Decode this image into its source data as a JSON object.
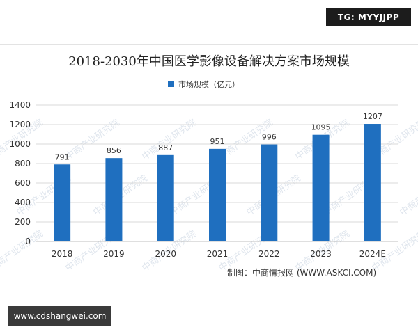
{
  "top_tag": "TG: MYYJJPP",
  "site_badge": "www.cdshangwei.com",
  "watermark_text": "中商产业研究院",
  "source_note": "制图：中商情报网 (WWW.ASKCI.COM)",
  "chart_data": {
    "type": "bar",
    "title": "2018-2030年中国医学影像设备解决方案市场规模",
    "categories": [
      "2018",
      "2019",
      "2020",
      "2021",
      "2022",
      "2023",
      "2024E"
    ],
    "series": [
      {
        "name": "市场规模（亿元）",
        "values": [
          791,
          856,
          887,
          951,
          996,
          1095,
          1207
        ]
      }
    ],
    "data_labels": [
      "791",
      "856",
      "887",
      "951",
      "996",
      "1095",
      "1207"
    ],
    "y_ticks": [
      "0",
      "200",
      "400",
      "600",
      "800",
      "1000",
      "1200",
      "1400"
    ],
    "ylim": [
      0,
      1400
    ],
    "grid": true,
    "legend_position": "top-center",
    "bar_color": "#1f6fbf"
  }
}
